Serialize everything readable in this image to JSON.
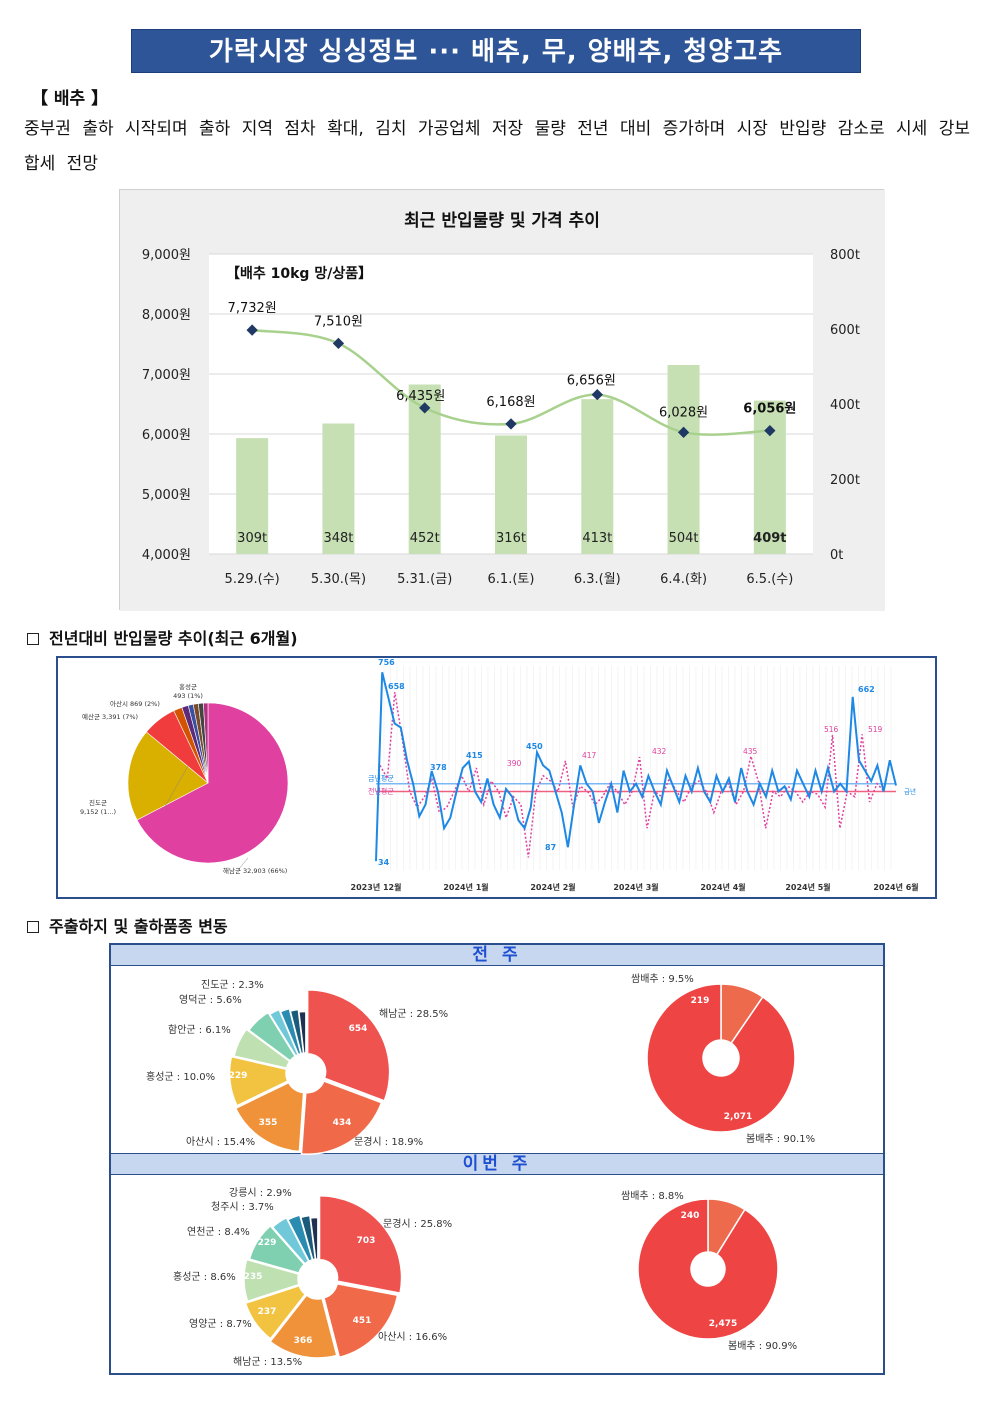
{
  "banner": "가락시장 싱싱정보 ··· 배추, 무, 양배추, 청양고추",
  "section_label": "【 배추 】",
  "paragraph": "중부권 출하 시작되며 출하 지역 점차 확대, 김치 가공업체 저장 물량 전년 대비 증가하며 시장 반입량 감소로 시세 강보합세 전망",
  "headings": {
    "yoy": "전년대비 반입물량 추이(최근 6개월)",
    "origin": "주출하지 및 출하품종 변동"
  },
  "colors": {
    "banner": "#2e5597",
    "bar": "#c6e0b4",
    "price_line": "#a9d18e",
    "marker": "#1f3864",
    "panel_border": "#2b4e8c",
    "current_year": "#1e88e5",
    "previous_year": "#e040a0"
  },
  "chart_data": [
    {
      "type": "bar",
      "title": "최근 반입물량 및 가격 추이",
      "annotation": "【배추 10kg 망/상품】",
      "categories": [
        "5.29.(수)",
        "5.30.(목)",
        "5.31.(금)",
        "6.1.(토)",
        "6.3.(월)",
        "6.4.(화)",
        "6.5.(수)"
      ],
      "series": [
        {
          "name": "반입물량",
          "axis": "right",
          "unit": "t",
          "values": [
            309,
            348,
            452,
            316,
            413,
            504,
            409
          ],
          "labels": [
            "309t",
            "348t",
            "452t",
            "316t",
            "413t",
            "504t",
            "409t"
          ]
        },
        {
          "name": "가격",
          "axis": "left",
          "unit": "원",
          "values": [
            7732,
            7510,
            6435,
            6168,
            6656,
            6028,
            6056
          ],
          "labels": [
            "7,732원",
            "7,510원",
            "6,435원",
            "6,168원",
            "6,656원",
            "6,028원",
            "6,056원"
          ]
        }
      ],
      "left_axis": {
        "ticks": [
          "9,000원",
          "8,000원",
          "7,000원",
          "6,000원",
          "5,000원",
          "4,000원"
        ],
        "ylim": [
          4000,
          9000
        ]
      },
      "right_axis": {
        "ticks": [
          "800t",
          "600t",
          "400t",
          "200t",
          "0t"
        ],
        "ylim": [
          0,
          800
        ]
      }
    },
    {
      "type": "pie",
      "slices": [
        {
          "label": "해남군 32,903 (66%)",
          "value": 66,
          "color": "#e040a0"
        },
        {
          "label": "진도군 9,152 (1...)",
          "value": 18.3,
          "color": "#d9b000"
        },
        {
          "label": "예산군 3,391 (7%)",
          "value": 6.8,
          "color": "#f03c3c"
        },
        {
          "label": "아산시 869 (2%)",
          "value": 1.7,
          "color": "#d35400"
        },
        {
          "label": "",
          "value": 1.3,
          "color": "#5d2b7a"
        },
        {
          "label": "홍성군 493 (1%)",
          "value": 1.0,
          "color": "#3a4fa0"
        },
        {
          "label": "",
          "value": 1.0,
          "color": "#7a4a2a"
        },
        {
          "label": "",
          "value": 1.0,
          "color": "#444444"
        },
        {
          "label": "",
          "value": 0.9,
          "color": "#b03080"
        }
      ]
    },
    {
      "type": "line",
      "x_ticks": [
        "2023년 12월",
        "2024년 1월",
        "2024년 2월",
        "2024년 3월",
        "2024년 4월",
        "2024년 5월",
        "2024년 6월"
      ],
      "series": [
        {
          "name": "금년",
          "color": "#1e88e5",
          "values": [
            34,
            756,
            658,
            560,
            545,
            420,
            330,
            205,
            250,
            378,
            300,
            160,
            200,
            300,
            390,
            415,
            300,
            260,
            350,
            250,
            200,
            310,
            280,
            190,
            160,
            240,
            450,
            400,
            380,
            300,
            220,
            87,
            250,
            400,
            330,
            300,
            180,
            260,
            330,
            220,
            380,
            300,
            330,
            280,
            360,
            300,
            250,
            380,
            320,
            260,
            360,
            300,
            390,
            300,
            260,
            360,
            300,
            350,
            260,
            390,
            300,
            250,
            330,
            280,
            380,
            300,
            320,
            270,
            380,
            330,
            280,
            380,
            300,
            390,
            300,
            330,
            300,
            662,
            420,
            380,
            340,
            400,
            300,
            420,
            323
          ],
          "labels": [
            "756",
            "658",
            "378",
            "415",
            "450",
            "87",
            "662",
            "34"
          ]
        },
        {
          "name": "전년",
          "color": "#e040a0",
          "values": [
            400,
            350,
            680,
            500,
            300,
            240,
            280,
            350,
            220,
            240,
            300,
            360,
            300,
            390,
            250,
            340,
            300,
            200,
            280,
            250,
            48,
            300,
            360,
            340,
            300,
            417,
            240,
            320,
            300,
            250,
            280,
            330,
            300,
            250,
            300,
            432,
            160,
            300,
            280,
            350,
            300,
            260,
            320,
            340,
            300,
            220,
            300,
            330,
            250,
            300,
            435,
            340,
            160,
            300,
            280,
            320,
            300,
            260,
            300,
            290,
            240,
            516,
            160,
            300,
            280,
            519,
            260,
            330,
            300
          ],
          "labels": [
            "390",
            "417",
            "432",
            "435",
            "516",
            "519"
          ]
        }
      ],
      "avg_labels": [
        "금년평균",
        "전년평균"
      ],
      "legend_text": "금년"
    },
    {
      "type": "pie",
      "period": "전 주",
      "slices": [
        {
          "label": "해남군 : 28.5%",
          "value": 654,
          "color": "#ef5350"
        },
        {
          "label": "문경시 : 18.9%",
          "value": 434,
          "color": "#f06a4a"
        },
        {
          "label": "아산시 : 15.4%",
          "value": 355,
          "color": "#f0923a"
        },
        {
          "label": "홍성군 : 10.0%",
          "value": 229,
          "color": "#f2c341"
        },
        {
          "label": "함안군 : 6.1%",
          "value": 140,
          "color": "#bfe0b0"
        },
        {
          "label": "영덕군 : 5.6%",
          "value": 128,
          "color": "#7fd0b0"
        },
        {
          "label": "진도군 : 2.3%",
          "value": 53,
          "color": "#70c8d8"
        },
        {
          "label": "",
          "value": 50,
          "color": "#2a8cb0"
        },
        {
          "label": "",
          "value": 45,
          "color": "#1a5a7a"
        },
        {
          "label": "",
          "value": 40,
          "color": "#203050"
        }
      ],
      "slice_values": [
        "654",
        "434",
        "355",
        "229"
      ]
    },
    {
      "type": "pie",
      "period": "전 주",
      "slices": [
        {
          "label": "쌈배추 : 9.5%",
          "value": 219,
          "color": "#ee6a4c"
        },
        {
          "label": "봄배추 : 90.1%",
          "value": 2071,
          "color": "#ef4444"
        }
      ],
      "slice_values": [
        "219",
        "2,071"
      ]
    },
    {
      "type": "pie",
      "period": "이번 주",
      "slices": [
        {
          "label": "문경시 : 25.8%",
          "value": 703,
          "color": "#ef5350"
        },
        {
          "label": "아산시 : 16.6%",
          "value": 451,
          "color": "#f06a4a"
        },
        {
          "label": "해남군 : 13.5%",
          "value": 366,
          "color": "#f0923a"
        },
        {
          "label": "영양군 : 8.7%",
          "value": 237,
          "color": "#f2c341"
        },
        {
          "label": "홍성군 : 8.6%",
          "value": 235,
          "color": "#bfe0b0"
        },
        {
          "label": "연천군 : 8.4%",
          "value": 229,
          "color": "#7fd0b0"
        },
        {
          "label": "청주시 : 3.7%",
          "value": 100,
          "color": "#70c8d8"
        },
        {
          "label": "강릉시 : 2.9%",
          "value": 79,
          "color": "#2a8cb0"
        },
        {
          "label": "",
          "value": 60,
          "color": "#1a5a7a"
        },
        {
          "label": "",
          "value": 50,
          "color": "#203050"
        }
      ],
      "slice_values": [
        "703",
        "451",
        "366",
        "237",
        "235",
        "229"
      ]
    },
    {
      "type": "pie",
      "period": "이번 주",
      "slices": [
        {
          "label": "쌈배추 : 8.8%",
          "value": 240,
          "color": "#ee6a4c"
        },
        {
          "label": "봄배추 : 90.9%",
          "value": 2475,
          "color": "#ef4444"
        }
      ],
      "slice_values": [
        "240",
        "2,475"
      ]
    }
  ],
  "week_headers": [
    "전 주",
    "이번 주"
  ]
}
